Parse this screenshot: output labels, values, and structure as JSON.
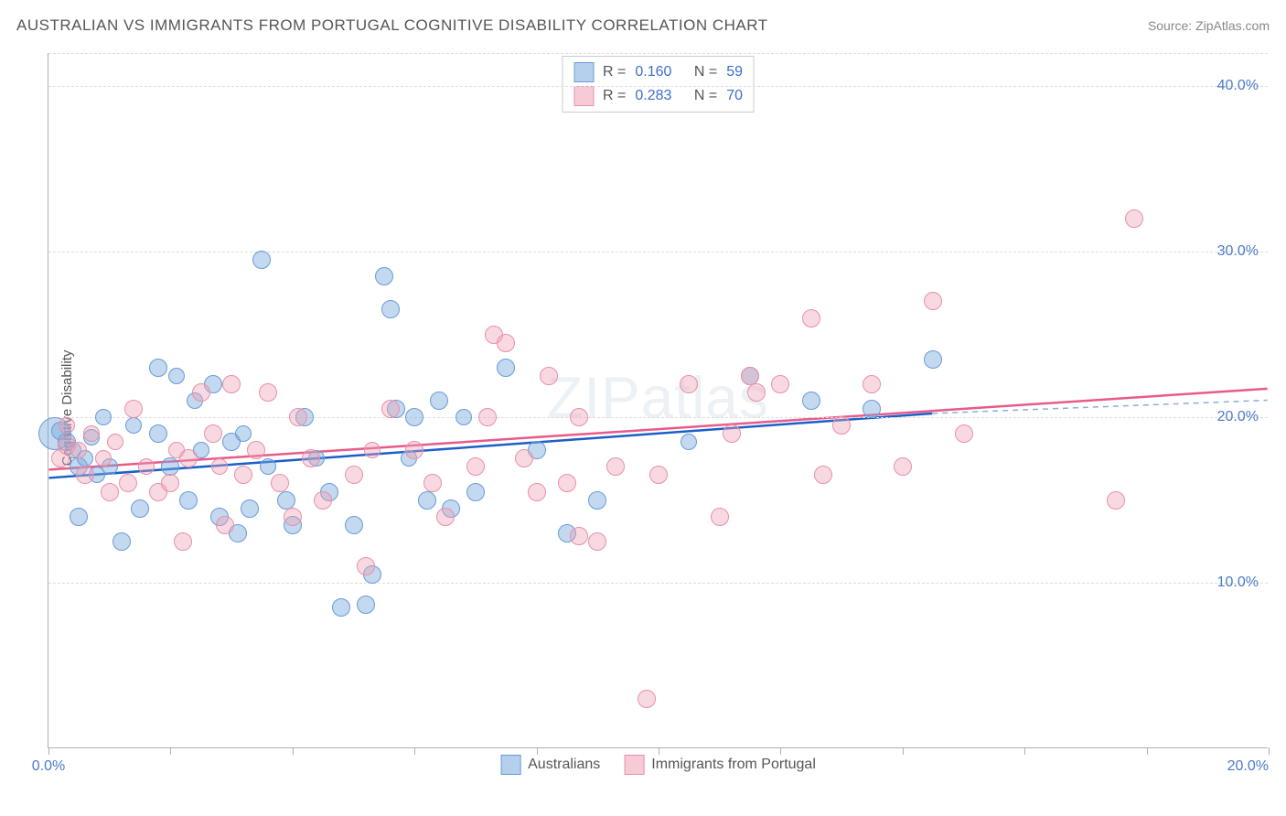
{
  "title": "AUSTRALIAN VS IMMIGRANTS FROM PORTUGAL COGNITIVE DISABILITY CORRELATION CHART",
  "source_prefix": "Source: ",
  "source_name": "ZipAtlas.com",
  "watermark": "ZIPatlas",
  "ylabel": "Cognitive Disability",
  "chart": {
    "type": "scatter",
    "background_color": "#ffffff",
    "grid_color": "#dddddd",
    "axis_color": "#b0b0b0",
    "tick_label_color": "#4a7ac7",
    "xlim": [
      0,
      20
    ],
    "ylim": [
      0,
      42
    ],
    "x_ticks_minor": [
      0,
      2,
      4,
      6,
      8,
      10,
      12,
      14,
      16,
      18,
      20
    ],
    "x_tick_labels": [
      {
        "value": 0,
        "label": "0.0%"
      },
      {
        "value": 20,
        "label": "20.0%"
      }
    ],
    "y_tick_labels": [
      {
        "value": 10,
        "label": "10.0%"
      },
      {
        "value": 20,
        "label": "20.0%"
      },
      {
        "value": 30,
        "label": "30.0%"
      },
      {
        "value": 40,
        "label": "40.0%"
      }
    ],
    "y_gridlines": [
      10,
      20,
      30,
      40,
      42
    ],
    "series": [
      {
        "name": "Australians",
        "color_fill": "rgba(120,170,220,0.45)",
        "color_stroke": "#6a9bd8",
        "class": "blue",
        "trend_color": "#1b5fc9",
        "trend_dash_color": "#8aaed8",
        "trend": {
          "x1": 0,
          "y1": 16.3,
          "x2_solid": 14.5,
          "y2_solid": 20.2,
          "x2": 20,
          "y2": 21.0
        },
        "R": "0.160",
        "N": "59",
        "points": [
          {
            "x": 0.1,
            "y": 19.0,
            "r": 18
          },
          {
            "x": 0.3,
            "y": 18.5,
            "r": 10
          },
          {
            "x": 0.2,
            "y": 19.2,
            "r": 10
          },
          {
            "x": 0.5,
            "y": 17.0,
            "r": 10
          },
          {
            "x": 0.4,
            "y": 18.0,
            "r": 9
          },
          {
            "x": 0.6,
            "y": 17.5,
            "r": 9
          },
          {
            "x": 0.7,
            "y": 18.8,
            "r": 9
          },
          {
            "x": 0.8,
            "y": 16.5,
            "r": 9
          },
          {
            "x": 0.5,
            "y": 14.0,
            "r": 10
          },
          {
            "x": 0.9,
            "y": 20.0,
            "r": 9
          },
          {
            "x": 1.0,
            "y": 17.0,
            "r": 9
          },
          {
            "x": 1.2,
            "y": 12.5,
            "r": 10
          },
          {
            "x": 1.4,
            "y": 19.5,
            "r": 9
          },
          {
            "x": 1.5,
            "y": 14.5,
            "r": 10
          },
          {
            "x": 1.8,
            "y": 23.0,
            "r": 10
          },
          {
            "x": 1.8,
            "y": 19.0,
            "r": 10
          },
          {
            "x": 2.0,
            "y": 17.0,
            "r": 10
          },
          {
            "x": 2.1,
            "y": 22.5,
            "r": 9
          },
          {
            "x": 2.3,
            "y": 15.0,
            "r": 10
          },
          {
            "x": 2.4,
            "y": 21.0,
            "r": 9
          },
          {
            "x": 2.5,
            "y": 18.0,
            "r": 9
          },
          {
            "x": 2.7,
            "y": 22.0,
            "r": 10
          },
          {
            "x": 2.8,
            "y": 14.0,
            "r": 10
          },
          {
            "x": 3.0,
            "y": 18.5,
            "r": 10
          },
          {
            "x": 3.1,
            "y": 13.0,
            "r": 10
          },
          {
            "x": 3.2,
            "y": 19.0,
            "r": 9
          },
          {
            "x": 3.3,
            "y": 14.5,
            "r": 10
          },
          {
            "x": 3.5,
            "y": 29.5,
            "r": 10
          },
          {
            "x": 3.6,
            "y": 17.0,
            "r": 9
          },
          {
            "x": 3.9,
            "y": 15.0,
            "r": 10
          },
          {
            "x": 4.0,
            "y": 13.5,
            "r": 10
          },
          {
            "x": 4.2,
            "y": 20.0,
            "r": 10
          },
          {
            "x": 4.4,
            "y": 17.5,
            "r": 9
          },
          {
            "x": 4.6,
            "y": 15.5,
            "r": 10
          },
          {
            "x": 4.8,
            "y": 8.5,
            "r": 10
          },
          {
            "x": 5.0,
            "y": 13.5,
            "r": 10
          },
          {
            "x": 5.2,
            "y": 8.7,
            "r": 10
          },
          {
            "x": 5.3,
            "y": 10.5,
            "r": 10
          },
          {
            "x": 5.5,
            "y": 28.5,
            "r": 10
          },
          {
            "x": 5.6,
            "y": 26.5,
            "r": 10
          },
          {
            "x": 5.7,
            "y": 20.5,
            "r": 10
          },
          {
            "x": 5.9,
            "y": 17.5,
            "r": 9
          },
          {
            "x": 6.0,
            "y": 20.0,
            "r": 10
          },
          {
            "x": 6.2,
            "y": 15.0,
            "r": 10
          },
          {
            "x": 6.4,
            "y": 21.0,
            "r": 10
          },
          {
            "x": 6.6,
            "y": 14.5,
            "r": 10
          },
          {
            "x": 6.8,
            "y": 20.0,
            "r": 9
          },
          {
            "x": 7.0,
            "y": 15.5,
            "r": 10
          },
          {
            "x": 7.5,
            "y": 23.0,
            "r": 10
          },
          {
            "x": 8.0,
            "y": 18.0,
            "r": 10
          },
          {
            "x": 8.5,
            "y": 13.0,
            "r": 10
          },
          {
            "x": 9.0,
            "y": 15.0,
            "r": 10
          },
          {
            "x": 10.5,
            "y": 18.5,
            "r": 9
          },
          {
            "x": 11.5,
            "y": 22.5,
            "r": 10
          },
          {
            "x": 12.5,
            "y": 21.0,
            "r": 10
          },
          {
            "x": 13.5,
            "y": 20.5,
            "r": 10
          },
          {
            "x": 14.5,
            "y": 23.5,
            "r": 10
          }
        ]
      },
      {
        "name": "Immigrants from Portugal",
        "color_fill": "rgba(240,160,180,0.40)",
        "color_stroke": "#e890a8",
        "class": "pink",
        "trend_color": "#e85a8a",
        "trend": {
          "x1": 0,
          "y1": 16.8,
          "x2_solid": 20,
          "y2_solid": 21.7,
          "x2": 20,
          "y2": 21.7
        },
        "R": "0.283",
        "N": "70",
        "points": [
          {
            "x": 0.2,
            "y": 17.5,
            "r": 10
          },
          {
            "x": 0.3,
            "y": 18.3,
            "r": 10
          },
          {
            "x": 0.3,
            "y": 19.5,
            "r": 9
          },
          {
            "x": 0.5,
            "y": 18.0,
            "r": 9
          },
          {
            "x": 0.6,
            "y": 16.5,
            "r": 10
          },
          {
            "x": 0.7,
            "y": 19.0,
            "r": 9
          },
          {
            "x": 0.9,
            "y": 17.5,
            "r": 9
          },
          {
            "x": 1.0,
            "y": 15.5,
            "r": 10
          },
          {
            "x": 1.1,
            "y": 18.5,
            "r": 9
          },
          {
            "x": 1.3,
            "y": 16.0,
            "r": 10
          },
          {
            "x": 1.4,
            "y": 20.5,
            "r": 10
          },
          {
            "x": 1.6,
            "y": 17.0,
            "r": 9
          },
          {
            "x": 1.8,
            "y": 15.5,
            "r": 10
          },
          {
            "x": 2.0,
            "y": 16.0,
            "r": 10
          },
          {
            "x": 2.1,
            "y": 18.0,
            "r": 9
          },
          {
            "x": 2.2,
            "y": 12.5,
            "r": 10
          },
          {
            "x": 2.3,
            "y": 17.5,
            "r": 10
          },
          {
            "x": 2.5,
            "y": 21.5,
            "r": 10
          },
          {
            "x": 2.7,
            "y": 19.0,
            "r": 10
          },
          {
            "x": 2.8,
            "y": 17.0,
            "r": 9
          },
          {
            "x": 2.9,
            "y": 13.5,
            "r": 10
          },
          {
            "x": 3.0,
            "y": 22.0,
            "r": 10
          },
          {
            "x": 3.2,
            "y": 16.5,
            "r": 10
          },
          {
            "x": 3.4,
            "y": 18.0,
            "r": 10
          },
          {
            "x": 3.6,
            "y": 21.5,
            "r": 10
          },
          {
            "x": 3.8,
            "y": 16.0,
            "r": 10
          },
          {
            "x": 4.0,
            "y": 14.0,
            "r": 10
          },
          {
            "x": 4.1,
            "y": 20.0,
            "r": 10
          },
          {
            "x": 4.3,
            "y": 17.5,
            "r": 10
          },
          {
            "x": 4.5,
            "y": 15.0,
            "r": 10
          },
          {
            "x": 5.0,
            "y": 16.5,
            "r": 10
          },
          {
            "x": 5.2,
            "y": 11.0,
            "r": 10
          },
          {
            "x": 5.3,
            "y": 18.0,
            "r": 9
          },
          {
            "x": 5.6,
            "y": 20.5,
            "r": 10
          },
          {
            "x": 6.0,
            "y": 18.0,
            "r": 10
          },
          {
            "x": 6.3,
            "y": 16.0,
            "r": 10
          },
          {
            "x": 6.5,
            "y": 14.0,
            "r": 10
          },
          {
            "x": 7.0,
            "y": 17.0,
            "r": 10
          },
          {
            "x": 7.2,
            "y": 20.0,
            "r": 10
          },
          {
            "x": 7.3,
            "y": 25.0,
            "r": 10
          },
          {
            "x": 7.5,
            "y": 24.5,
            "r": 10
          },
          {
            "x": 7.8,
            "y": 17.5,
            "r": 10
          },
          {
            "x": 8.0,
            "y": 15.5,
            "r": 10
          },
          {
            "x": 8.2,
            "y": 22.5,
            "r": 10
          },
          {
            "x": 8.5,
            "y": 16.0,
            "r": 10
          },
          {
            "x": 8.7,
            "y": 12.8,
            "r": 10
          },
          {
            "x": 8.7,
            "y": 20.0,
            "r": 10
          },
          {
            "x": 9.0,
            "y": 12.5,
            "r": 10
          },
          {
            "x": 9.3,
            "y": 17.0,
            "r": 10
          },
          {
            "x": 9.8,
            "y": 3.0,
            "r": 10
          },
          {
            "x": 10.0,
            "y": 16.5,
            "r": 10
          },
          {
            "x": 10.5,
            "y": 22.0,
            "r": 10
          },
          {
            "x": 11.0,
            "y": 14.0,
            "r": 10
          },
          {
            "x": 11.2,
            "y": 19.0,
            "r": 10
          },
          {
            "x": 11.5,
            "y": 22.5,
            "r": 10
          },
          {
            "x": 11.6,
            "y": 21.5,
            "r": 10
          },
          {
            "x": 12.0,
            "y": 22.0,
            "r": 10
          },
          {
            "x": 12.5,
            "y": 26.0,
            "r": 10
          },
          {
            "x": 12.7,
            "y": 16.5,
            "r": 10
          },
          {
            "x": 13.0,
            "y": 19.5,
            "r": 10
          },
          {
            "x": 13.5,
            "y": 22.0,
            "r": 10
          },
          {
            "x": 14.0,
            "y": 17.0,
            "r": 10
          },
          {
            "x": 14.5,
            "y": 27.0,
            "r": 10
          },
          {
            "x": 15.0,
            "y": 19.0,
            "r": 10
          },
          {
            "x": 17.5,
            "y": 15.0,
            "r": 10
          },
          {
            "x": 17.8,
            "y": 32.0,
            "r": 10
          }
        ]
      }
    ],
    "legend_top": {
      "R_label": "R =",
      "N_label": "N ="
    },
    "legend_bottom": [
      {
        "label": "Australians",
        "class": "blue"
      },
      {
        "label": "Immigrants from Portugal",
        "class": "pink"
      }
    ]
  }
}
